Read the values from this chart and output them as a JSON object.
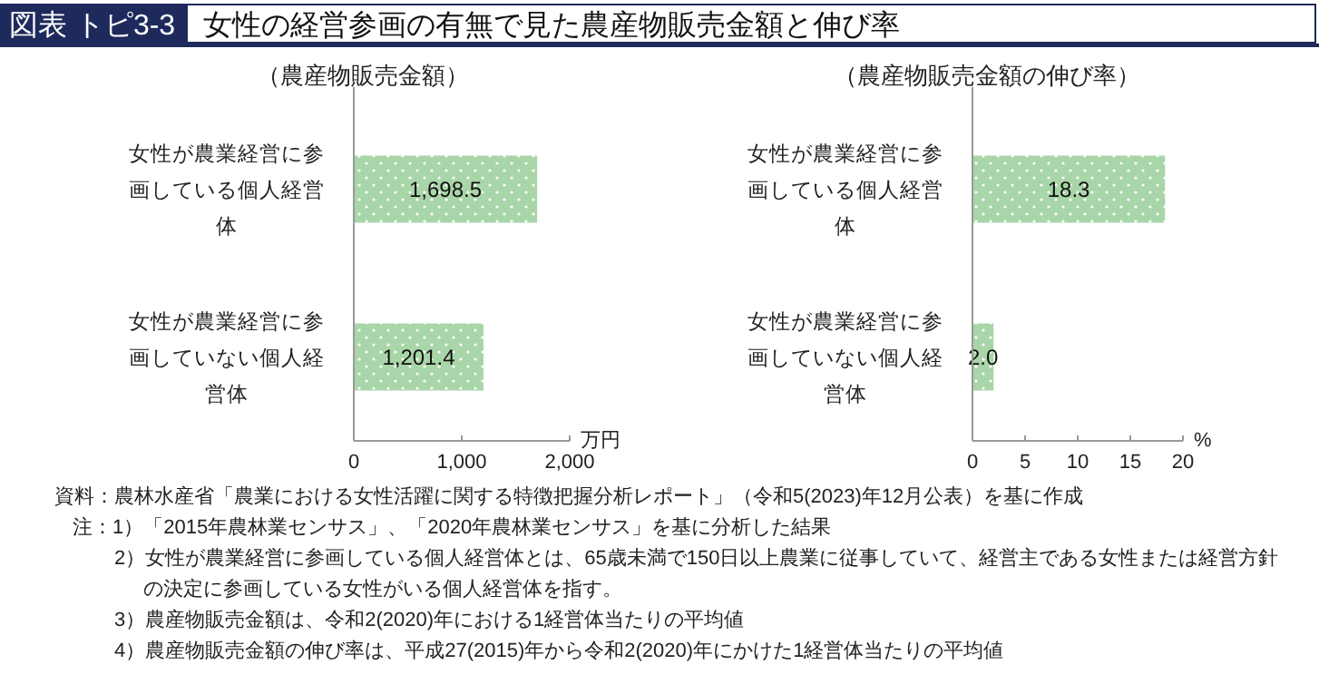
{
  "chart_data": [
    {
      "type": "other",
      "title": "図表 トピ3-3",
      "subtitle": "女性の経営参画の有無で見た農産物販売金額と伸び率"
    },
    {
      "type": "bar",
      "orientation": "horizontal",
      "title": "（農産物販売金額）",
      "xlabel": "万円",
      "categories": [
        "女性が農業経営に参画している個人経営体",
        "女性が農業経営に参画していない個人経営体"
      ],
      "values": [
        1698.5,
        1201.4
      ],
      "value_labels": [
        "1,698.5",
        "1,201.4"
      ],
      "color": "#a9d6a8",
      "xlim": [
        0,
        2000
      ],
      "xticks": [
        0,
        {
          "value": 1000,
          "label": "1,000"
        },
        {
          "value": 2000,
          "label": "2,000"
        }
      ]
    },
    {
      "type": "bar",
      "orientation": "horizontal",
      "title": "（農産物販売金額の伸び率）",
      "xlabel": "%",
      "categories": [
        "女性が農業経営に参画している個人経営体",
        "女性が農業経営に参画していない個人経営体"
      ],
      "values": [
        18.3,
        2.0
      ],
      "value_labels": [
        "18.3",
        "2.0"
      ],
      "color": "#a9d6a8",
      "xlim": [
        0,
        20
      ],
      "xticks": [
        0,
        5,
        10,
        15,
        20
      ]
    },
    {
      "type": "other",
      "annotations": [
        "資料：農林水産省「農業における女性活躍に関する特徴把握分析レポート」（令和5(2023)年12月公表）を基に作成",
        "注：1）「2015年農林業センサス」、「2020年農林業センサス」を基に分析した結果",
        "2）女性が農業経営に参画している個人経営体とは、65歳未満で150日以上農業に従事していて、経営主である女性または経営方針の決定に参画している女性がいる個人経営体を指す。",
        "3）農産物販売金額は、令和2(2020)年における1経営体当たりの平均値",
        "4）農産物販売金額の伸び率は、平成27(2015)年から令和2(2020)年にかけた1経営体当たりの平均値"
      ]
    }
  ]
}
